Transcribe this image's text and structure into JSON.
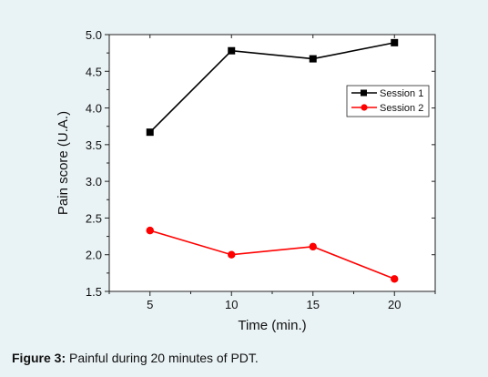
{
  "caption": {
    "label": "Figure 3:",
    "text": " Painful during 20 minutes of PDT."
  },
  "chart_data": {
    "type": "line",
    "xlabel": "Time (min.)",
    "ylabel": "Pain score (U.A.)",
    "x": [
      5,
      10,
      15,
      20
    ],
    "xticks": [
      "5",
      "10",
      "15",
      "20"
    ],
    "xlim": [
      2.5,
      22.5
    ],
    "ylim": [
      1.5,
      5.0
    ],
    "yticks": [
      "1.5",
      "2.0",
      "2.5",
      "3.0",
      "3.5",
      "4.0",
      "4.5",
      "5.0"
    ],
    "grid": false,
    "legend_position": "right, upper-middle",
    "series": [
      {
        "name": "Session 1",
        "values": [
          3.67,
          4.78,
          4.67,
          4.89
        ],
        "color": "#000000",
        "marker": "square"
      },
      {
        "name": "Session 2",
        "values": [
          2.33,
          2.0,
          2.11,
          1.67
        ],
        "color": "#ff0000",
        "marker": "circle"
      }
    ]
  }
}
